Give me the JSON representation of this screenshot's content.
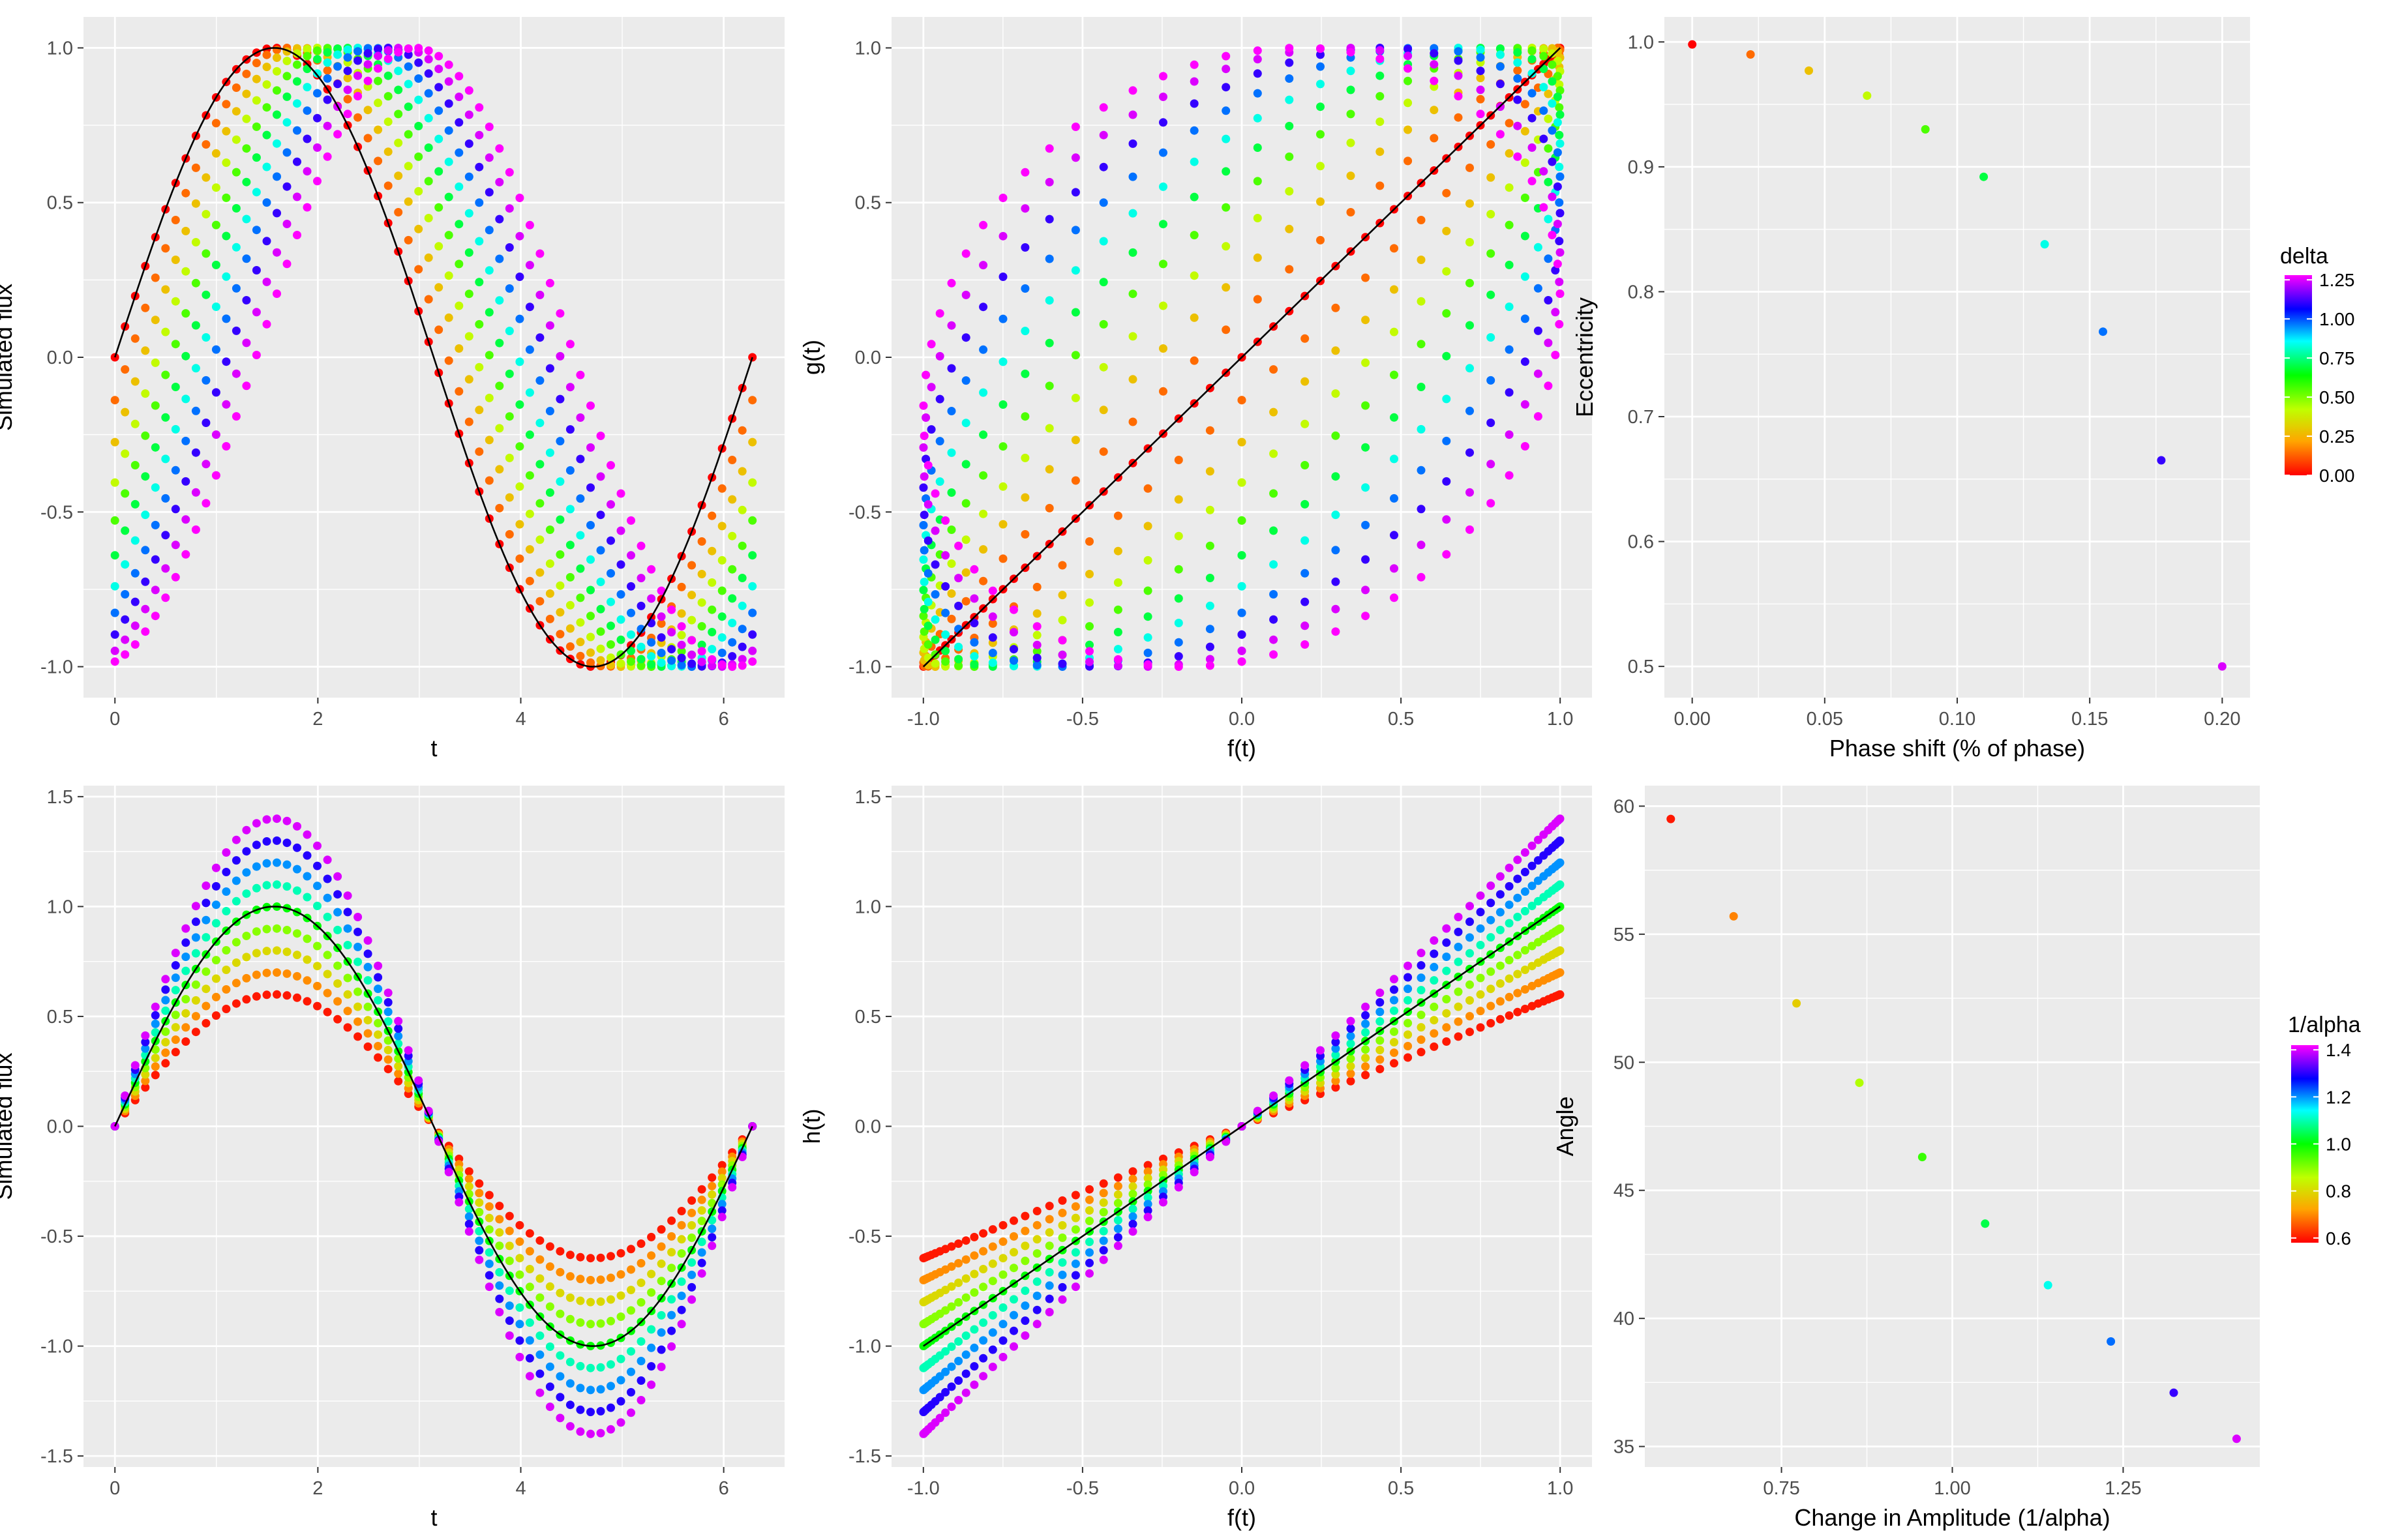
{
  "chart_data": [
    {
      "id": "p1",
      "type": "scatter",
      "title": "",
      "xlabel": "t",
      "ylabel": "Simulated flux",
      "xlim": [
        -0.31,
        6.6
      ],
      "ylim": [
        -1.1,
        1.1
      ],
      "xticks": [
        0,
        2,
        4,
        6
      ],
      "xtick_labels": [
        "0",
        "2",
        "4",
        "6"
      ],
      "yticks": [
        -1,
        -0.5,
        0,
        0.5,
        1
      ],
      "ytick_labels": [
        "-1.0",
        "-0.5",
        "0.0",
        "0.5",
        "1.0"
      ],
      "x_range": [
        0,
        6.2832
      ],
      "n_points": 64,
      "series_formula": "y = sin(t - delta), clipped to [-1, 1]",
      "series_values": [
        0,
        0.1389,
        0.2778,
        0.4167,
        0.5556,
        0.6944,
        0.8333,
        0.9722,
        1.1111,
        1.25,
        1.3889
      ],
      "reference_line": "sin(t)"
    },
    {
      "id": "p2",
      "type": "scatter",
      "title": "",
      "xlabel": "f(t)",
      "ylabel": "g(t)",
      "xlim": [
        -1.1,
        1.1
      ],
      "ylim": [
        -1.1,
        1.1
      ],
      "xticks": [
        -1,
        -0.5,
        0,
        0.5,
        1
      ],
      "xtick_labels": [
        "-1.0",
        "-0.5",
        "0.0",
        "0.5",
        "1.0"
      ],
      "yticks": [
        -1,
        -0.5,
        0,
        0.5,
        1
      ],
      "ytick_labels": [
        "-1.0",
        "-0.5",
        "0.0",
        "0.5",
        "1.0"
      ],
      "series_formula": "x = sin(t), y = sin(t - delta)",
      "reference_line": "y = x"
    },
    {
      "id": "p3",
      "type": "scatter",
      "title": "",
      "xlabel": "Phase shift (% of phase)",
      "ylabel": "Eccentricity",
      "xlim": [
        -0.0105,
        0.2105
      ],
      "ylim": [
        0.475,
        1.02
      ],
      "xticks": [
        0,
        0.05,
        0.1,
        0.15,
        0.2
      ],
      "xtick_labels": [
        "0.00",
        "0.05",
        "0.10",
        "0.15",
        "0.20"
      ],
      "yticks": [
        0.5,
        0.6,
        0.7,
        0.8,
        0.9,
        1.0
      ],
      "ytick_labels": [
        "0.5",
        "0.6",
        "0.7",
        "0.8",
        "0.9",
        "1.0"
      ],
      "x": [
        0,
        0.022,
        0.044,
        0.066,
        0.088,
        0.11,
        0.133,
        0.155,
        0.177,
        0.2
      ],
      "y": [
        0.998,
        0.99,
        0.977,
        0.957,
        0.93,
        0.892,
        0.838,
        0.768,
        0.665,
        0.5
      ],
      "color_values": [
        0,
        0.1389,
        0.2778,
        0.4167,
        0.5556,
        0.6944,
        0.8333,
        0.9722,
        1.1111,
        1.25
      ]
    },
    {
      "id": "p4",
      "type": "scatter",
      "title": "",
      "xlabel": "t",
      "ylabel": "Simulated flux",
      "xlim": [
        -0.31,
        6.6
      ],
      "ylim": [
        -1.55,
        1.55
      ],
      "xticks": [
        0,
        2,
        4,
        6
      ],
      "xtick_labels": [
        "0",
        "2",
        "4",
        "6"
      ],
      "yticks": [
        -1.5,
        -1,
        -0.5,
        0,
        0.5,
        1,
        1.5
      ],
      "ytick_labels": [
        "-1.5",
        "-1.0",
        "-0.5",
        "0.0",
        "0.5",
        "1.0",
        "1.5"
      ],
      "x_range": [
        0,
        6.2832
      ],
      "n_points": 64,
      "series_formula": "y = sin(t) / alpha",
      "series_values": [
        0.6,
        0.7,
        0.8,
        0.9,
        1.0,
        1.1,
        1.2,
        1.3,
        1.4
      ],
      "reference_line": "sin(t)"
    },
    {
      "id": "p5",
      "type": "scatter",
      "title": "",
      "xlabel": "f(t)",
      "ylabel": "h(t)",
      "xlim": [
        -1.1,
        1.1
      ],
      "ylim": [
        -1.55,
        1.55
      ],
      "xticks": [
        -1,
        -0.5,
        0,
        0.5,
        1
      ],
      "xtick_labels": [
        "-1.0",
        "-0.5",
        "0.0",
        "0.5",
        "1.0"
      ],
      "yticks": [
        -1.5,
        -1,
        -0.5,
        0,
        0.5,
        1,
        1.5
      ],
      "ytick_labels": [
        "-1.5",
        "-1.0",
        "-0.5",
        "0.0",
        "0.5",
        "1.0",
        "1.5"
      ],
      "series_formula": "x = sin(t), y = sin(t) / alpha",
      "reference_line": "y = x"
    },
    {
      "id": "p6",
      "type": "scatter",
      "title": "",
      "xlabel": "Change in Amplitude (1/alpha)",
      "ylabel": "Angle",
      "xlim": [
        0.55,
        1.45
      ],
      "ylim": [
        34.2,
        60.8
      ],
      "xticks": [
        0.75,
        1.0,
        1.25
      ],
      "xtick_labels": [
        "0.75",
        "1.00",
        "1.25"
      ],
      "yticks": [
        35,
        40,
        45,
        50,
        55,
        60
      ],
      "ytick_labels": [
        "35",
        "40",
        "45",
        "50",
        "55",
        "60"
      ],
      "x": [
        0.588,
        0.68,
        0.772,
        0.864,
        0.956,
        1.048,
        1.14,
        1.232,
        1.324,
        1.416
      ],
      "y": [
        59.5,
        55.7,
        52.3,
        49.2,
        46.3,
        43.7,
        41.3,
        39.1,
        37.1,
        35.3
      ],
      "color_values": [
        0.6,
        0.69,
        0.78,
        0.87,
        0.96,
        1.04,
        1.13,
        1.22,
        1.31,
        1.4
      ]
    }
  ],
  "legends": [
    {
      "title": "delta",
      "range": [
        0,
        1.28
      ],
      "ticks": [
        0,
        0.25,
        0.5,
        0.75,
        1.0,
        1.25
      ],
      "tick_labels": [
        "0.00",
        "0.25",
        "0.50",
        "0.75",
        "1.00",
        "1.25"
      ]
    },
    {
      "title": "1/alpha",
      "range": [
        0.58,
        1.42
      ],
      "ticks": [
        0.6,
        0.8,
        1.0,
        1.2,
        1.4
      ],
      "tick_labels": [
        "0.6",
        "0.8",
        "1.0",
        "1.2",
        "1.4"
      ]
    }
  ],
  "colors": {
    "panel_background": "#ebebeb",
    "grid": "#ffffff",
    "reference_line": "#000000",
    "gradient": [
      "#ff0000",
      "#ffa500",
      "#bfff00",
      "#00ff00",
      "#00ffff",
      "#0000ff",
      "#ff00ff"
    ]
  }
}
